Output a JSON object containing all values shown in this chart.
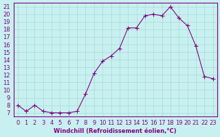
{
  "x": [
    0,
    1,
    2,
    3,
    4,
    5,
    6,
    7,
    8,
    9,
    10,
    11,
    12,
    13,
    14,
    15,
    16,
    17,
    18,
    19,
    20,
    21,
    22,
    23
  ],
  "y": [
    8,
    7.2,
    8,
    7.2,
    7,
    7,
    7,
    7.2,
    9.5,
    12.2,
    13.8,
    14.5,
    15.5,
    18.2,
    18.2,
    19.8,
    20,
    19.8,
    21,
    19.5,
    18.5,
    15.8,
    11.8,
    11.5
  ],
  "line_color": "#800080",
  "marker": "+",
  "marker_size": 4,
  "bg_color": "#c8f0f0",
  "grid_color": "#a8d8d8",
  "xlabel": "Windchill (Refroidissement éolien,°C)",
  "xlim": [
    -0.5,
    23.5
  ],
  "ylim": [
    6.5,
    21.5
  ],
  "yticks": [
    7,
    8,
    9,
    10,
    11,
    12,
    13,
    14,
    15,
    16,
    17,
    18,
    19,
    20,
    21
  ],
  "xticks": [
    0,
    1,
    2,
    3,
    4,
    5,
    6,
    7,
    8,
    9,
    10,
    11,
    12,
    13,
    14,
    15,
    16,
    17,
    18,
    19,
    20,
    21,
    22,
    23
  ],
  "tick_color": "#800080",
  "label_color": "#800080",
  "spine_color": "#800080",
  "font_size": 6
}
